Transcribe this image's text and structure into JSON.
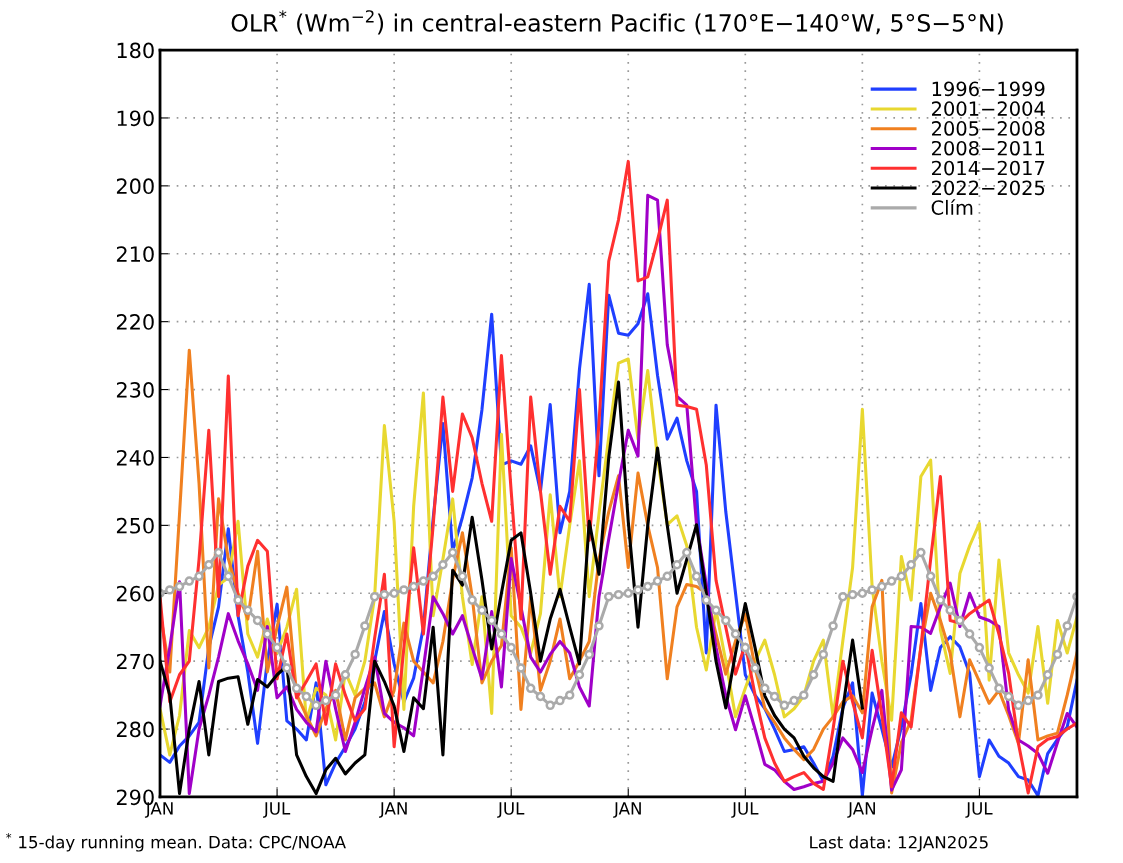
{
  "chart_data": {
    "type": "line",
    "title": "OLR$^{*}$ (Wm$^{−2}$) in central-eastern Pacific (170°E−140°W, 5°S−5°N)",
    "annotations": [
      "$^{*}$ 15-day running mean. Data: CPC/NOAA",
      "Last data: 12JAN2025"
    ],
    "categories": [
      "JAN",
      null,
      null,
      null,
      null,
      null,
      null,
      null,
      null,
      null,
      null,
      null,
      "JUL",
      null,
      null,
      null,
      null,
      null,
      null,
      null,
      null,
      null,
      null,
      null,
      "JAN",
      null,
      null,
      null,
      null,
      null,
      null,
      null,
      null,
      null,
      null,
      null,
      "JUL",
      null,
      null,
      null,
      null,
      null,
      null,
      null,
      null,
      null,
      null,
      null,
      "JAN",
      null,
      null,
      null,
      null,
      null,
      null,
      null,
      null,
      null,
      null,
      null,
      "JUL",
      null,
      null,
      null,
      null,
      null,
      null,
      null,
      null,
      null,
      null,
      null,
      "JAN",
      null,
      null,
      null,
      null,
      null,
      null,
      null,
      null,
      null,
      null,
      null,
      "JUL",
      null,
      null,
      null,
      null,
      null,
      null,
      null,
      null,
      null,
      null
    ],
    "ylim": [
      290,
      180
    ],
    "yticks": [
      180,
      190,
      200,
      210,
      220,
      230,
      240,
      250,
      260,
      270,
      280,
      290
    ],
    "grid": true,
    "legend": "top right",
    "series": [
      {
        "name": "1996−1999",
        "color": "#1f3fff",
        "values": [
          283.8,
          284.9,
          282.5,
          281,
          279,
          268,
          262,
          250.5,
          263.3,
          271.6,
          282.1,
          270,
          261.6,
          278.8,
          280,
          281.6,
          273.2,
          288.2,
          285,
          282.6,
          280,
          276,
          270,
          262.7,
          270.4,
          276,
          272.5,
          265,
          249,
          235,
          253.8,
          248.8,
          243,
          233,
          218.9,
          241.1,
          240.5,
          241,
          238.3,
          245,
          232.2,
          251.1,
          245,
          227,
          214.5,
          242.7,
          216.1,
          221.7,
          222,
          220.3,
          215.9,
          227.9,
          237.3,
          234.2,
          240.5,
          245,
          268.8,
          232.3,
          248,
          260,
          272,
          275,
          277,
          280,
          283.3,
          283,
          282.6,
          285,
          287.7,
          284,
          276.9,
          273.2,
          289.8,
          274.7,
          280,
          285.6,
          279.7,
          272,
          261.5,
          274.3,
          268,
          266.4,
          267.9,
          271.8,
          287,
          281.6,
          284,
          285,
          287,
          287.5,
          289.8,
          283.6,
          281.5,
          279.7,
          272.8
        ]
      },
      {
        "name": "2001−2004",
        "color": "#e8d830",
        "values": [
          277,
          283.8,
          278,
          265.5,
          268,
          265,
          258.8,
          257.7,
          249.4,
          266,
          269.4,
          263.8,
          268.8,
          265,
          259.4,
          278.8,
          274,
          275,
          281.6,
          271.6,
          275,
          270,
          260.5,
          235.3,
          249.4,
          277.1,
          247.2,
          230.5,
          263.3,
          255,
          246.1,
          260.5,
          270.5,
          260.5,
          277.7,
          236.6,
          263.3,
          265,
          268.8,
          263,
          245.5,
          260.5,
          250,
          240.5,
          260.5,
          248.3,
          237,
          226.1,
          225.5,
          237.3,
          227.2,
          240,
          249.9,
          248.6,
          253,
          265,
          271.3,
          262.5,
          270,
          278.2,
          274,
          270,
          266.9,
          272,
          278.2,
          277,
          275.1,
          270,
          266.9,
          278.2,
          267,
          256.2,
          232.9,
          259,
          270,
          278.7,
          254.6,
          261,
          242.8,
          240.4,
          265.4,
          271.8,
          257.1,
          253,
          249.7,
          272.8,
          255.1,
          268.8,
          272,
          274.7,
          264.9,
          276.2,
          264,
          268.8,
          263.5
        ]
      },
      {
        "name": "2005−2008",
        "color": "#f08020",
        "values": [
          262.7,
          271.6,
          248.3,
          224.2,
          243.8,
          271,
          246.1,
          254.9,
          260,
          263.8,
          253.8,
          271.6,
          265,
          259.1,
          274.9,
          278,
          281,
          277,
          274.3,
          281.6,
          275.4,
          274,
          273.2,
          278.2,
          274.3,
          264.4,
          270,
          271.6,
          273.2,
          267.1,
          258,
          251.1,
          260.5,
          273.2,
          270,
          267.7,
          253.3,
          277.1,
          260.5,
          274.3,
          270,
          263.8,
          272.6,
          270,
          267.1,
          255,
          248,
          242.7,
          256.2,
          242.3,
          250,
          256.2,
          272.6,
          262,
          258.7,
          259,
          260,
          266,
          271.9,
          267,
          263.1,
          271,
          276.9,
          279,
          281.3,
          283,
          284.5,
          283,
          280,
          278.2,
          276,
          275.1,
          277.6,
          262,
          258.1,
          289.4,
          282,
          278.7,
          267.9,
          260,
          264,
          268.8,
          278.2,
          269.8,
          273,
          276.2,
          274.3,
          278,
          282.1,
          269.8,
          281.6,
          281,
          280.6,
          275,
          268.8
        ]
      },
      {
        "name": "2008−2011",
        "color": "#a000c8",
        "values": [
          276.6,
          268,
          258.3,
          289.5,
          280,
          275,
          269.4,
          263,
          267,
          270.4,
          274.3,
          264.9,
          275.4,
          273.8,
          277.1,
          279,
          280.4,
          270,
          277,
          283.3,
          279,
          274,
          269.4,
          277.7,
          279,
          279.8,
          281,
          271,
          260.5,
          263,
          266,
          263.3,
          268,
          272.6,
          262.7,
          273.8,
          254.9,
          262,
          269.4,
          271.6,
          269,
          267.1,
          268.8,
          273.8,
          276.6,
          260.5,
          252,
          243.8,
          236,
          239.8,
          201.4,
          202.1,
          223.4,
          231,
          232.3,
          249.9,
          258.7,
          268,
          275.1,
          280.1,
          275.1,
          280,
          285.2,
          286,
          287.7,
          288.9,
          288.5,
          288,
          287.7,
          285,
          281.3,
          283,
          286.4,
          280,
          274.3,
          289,
          286,
          264.9,
          265,
          265.9,
          262,
          258.5,
          264.9,
          260,
          263.5,
          264,
          264.9,
          277.2,
          281.6,
          282.5,
          283.6,
          286.5,
          282,
          277.7,
          279.7
        ]
      },
      {
        "name": "2014−2017",
        "color": "#ff3030",
        "values": [
          260.5,
          276,
          272,
          270,
          255,
          236,
          260.5,
          228,
          263.3,
          256,
          252.2,
          253.8,
          272.6,
          266,
          275.4,
          273,
          270.4,
          279.3,
          270.4,
          275,
          278.8,
          277,
          266.6,
          257.2,
          282.6,
          268,
          253.3,
          266,
          250,
          231.1,
          245,
          233.6,
          237.1,
          243.8,
          249.4,
          225,
          245,
          263.8,
          231.1,
          245,
          257.2,
          247.2,
          249.4,
          230,
          252.2,
          235,
          211.1,
          205,
          196.4,
          214,
          213.4,
          208,
          202.1,
          232.3,
          232.5,
          232.9,
          241.1,
          258.1,
          265,
          271.9,
          267.5,
          275,
          281.3,
          285,
          287.7,
          287,
          286.4,
          288,
          288.9,
          280,
          270,
          276,
          281.3,
          268.4,
          278,
          288.5,
          277.6,
          279.7,
          267.9,
          255,
          242.8,
          264,
          264.4,
          263,
          262,
          261,
          266,
          271.8,
          282.1,
          289.4,
          282.6,
          281.5,
          281.1,
          280,
          279.1
        ]
      },
      {
        "name": "2022−2025",
        "color": "#000000",
        "values": [
          270,
          275,
          289.5,
          280,
          273,
          283.8,
          273,
          272.5,
          272.3,
          279.3,
          272.7,
          273.8,
          272,
          270.7,
          283.8,
          287,
          289.5,
          286,
          284.3,
          286.6,
          285,
          283.8,
          270,
          273,
          276.6,
          283.3,
          275.4,
          277,
          265,
          283.8,
          256.6,
          258.8,
          248.8,
          258,
          268.2,
          260,
          252.2,
          251.1,
          260,
          270,
          263.8,
          259.4,
          265,
          270.4,
          249.4,
          257.2,
          240,
          228.9,
          249.4,
          265,
          250,
          238.6,
          250,
          260,
          255,
          249.9,
          260,
          270,
          276.9,
          268.8,
          261.5,
          268,
          275.1,
          278,
          280,
          281.3,
          284,
          285.7,
          287,
          287.7,
          277,
          266.9,
          276.9,
          null,
          null,
          null,
          null,
          null,
          null,
          null,
          null,
          null,
          null,
          null,
          null,
          null,
          null,
          null,
          null,
          null,
          null,
          null,
          null,
          null,
          null
        ]
      },
      {
        "name": "Clím",
        "color": "#aaaaaa",
        "marker": "circle",
        "values": [
          260,
          259.5,
          259,
          258.2,
          257.5,
          255.8,
          254,
          257.5,
          261,
          262.5,
          264,
          266,
          268,
          271,
          274,
          275.2,
          276.5,
          275.8,
          275,
          272,
          269,
          264.8,
          260.5,
          260.2,
          260,
          259.5,
          259,
          258.2,
          257.5,
          255.8,
          254,
          257.5,
          261,
          262.5,
          264,
          266,
          268,
          271,
          274,
          275.2,
          276.5,
          275.8,
          275,
          272,
          269,
          264.8,
          260.5,
          260.2,
          260,
          259.5,
          259,
          258.2,
          257.5,
          255.8,
          254,
          257.5,
          261,
          262.5,
          264,
          266,
          268,
          271,
          274,
          275.2,
          276.5,
          275.8,
          275,
          272,
          269,
          264.8,
          260.5,
          260.2,
          260,
          259.5,
          259,
          258.2,
          257.5,
          255.8,
          254,
          257.5,
          261,
          262.5,
          264,
          266,
          268,
          271,
          274,
          275.2,
          276.5,
          275.8,
          275,
          272,
          269,
          264.8,
          260.5
        ]
      }
    ]
  }
}
